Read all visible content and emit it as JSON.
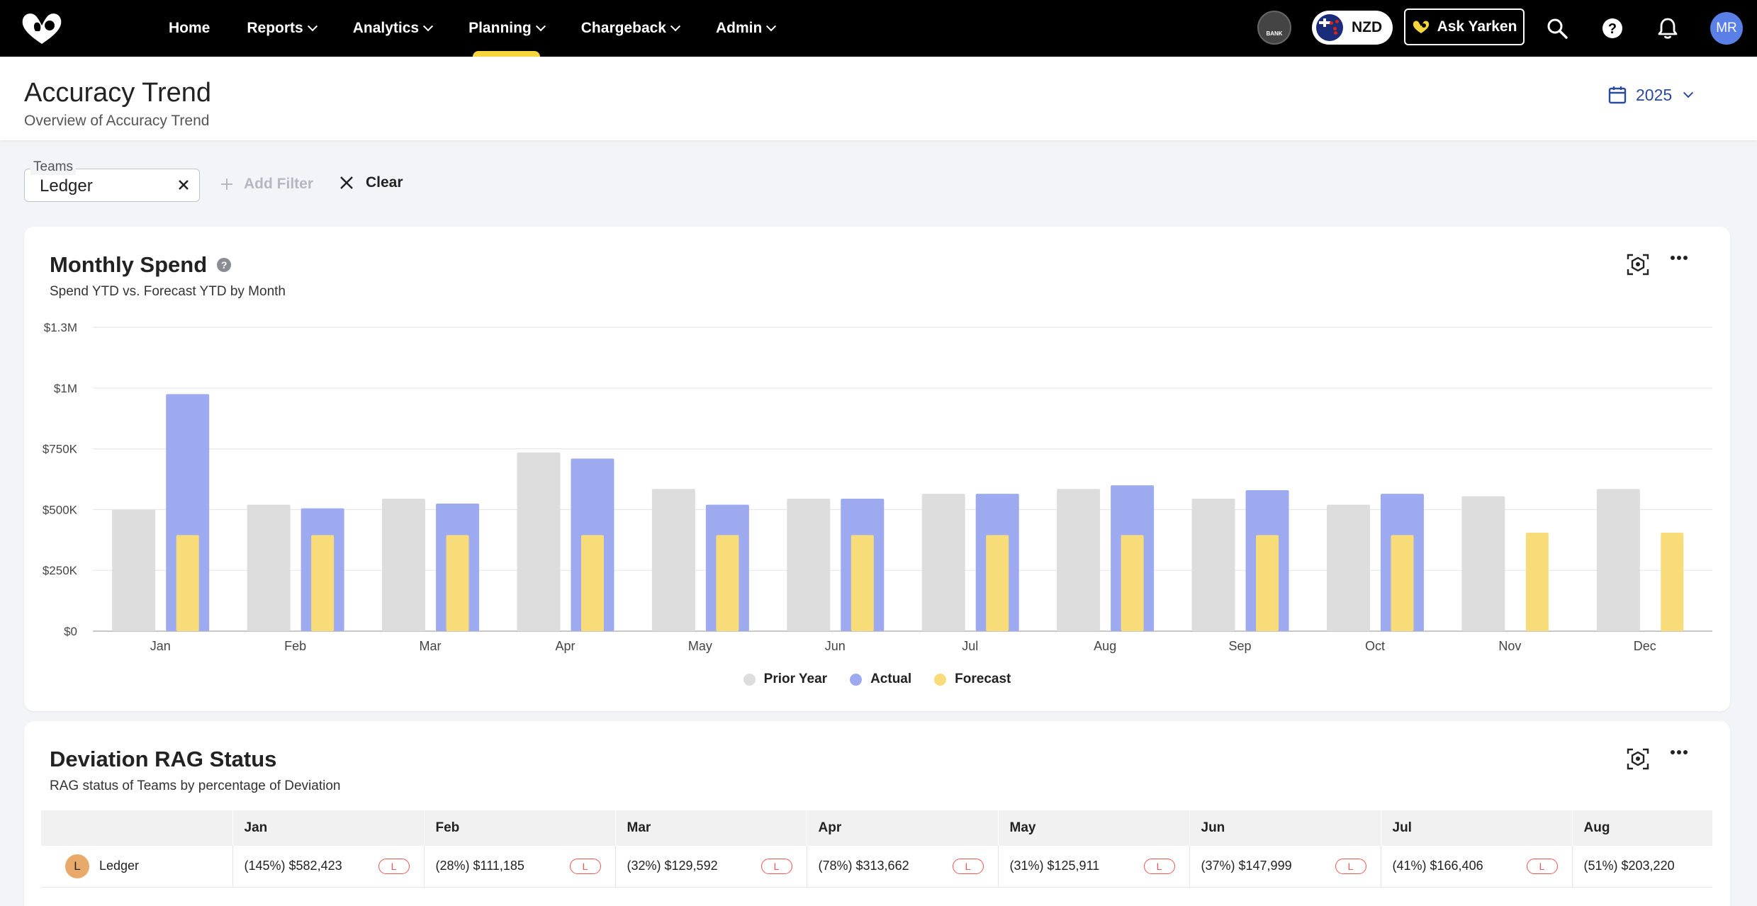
{
  "nav": {
    "items": [
      {
        "label": "Home",
        "dropdown": false,
        "active": false
      },
      {
        "label": "Reports",
        "dropdown": true,
        "active": false
      },
      {
        "label": "Analytics",
        "dropdown": true,
        "active": false
      },
      {
        "label": "Planning",
        "dropdown": true,
        "active": true
      },
      {
        "label": "Chargeback",
        "dropdown": true,
        "active": false
      },
      {
        "label": "Admin",
        "dropdown": true,
        "active": false
      }
    ],
    "bank_label": "BANK",
    "currency": "NZD",
    "ask_label": "Ask Yarken",
    "user_initials": "MR"
  },
  "header": {
    "title": "Accuracy Trend",
    "subtitle": "Overview of Accuracy Trend",
    "year": "2025"
  },
  "filters": {
    "teams_label": "Teams",
    "teams_value": "Ledger",
    "add_filter_label": "Add Filter",
    "clear_label": "Clear"
  },
  "monthly_spend": {
    "title": "Monthly Spend",
    "subtitle": "Spend YTD vs. Forecast YTD by Month"
  },
  "chart_data": {
    "type": "bar",
    "categories": [
      "Jan",
      "Feb",
      "Mar",
      "Apr",
      "May",
      "Jun",
      "Jul",
      "Aug",
      "Sep",
      "Oct",
      "Nov",
      "Dec"
    ],
    "series": [
      {
        "name": "Prior Year",
        "color": "#dddddd",
        "values": [
          500000,
          520000,
          545000,
          735000,
          585000,
          545000,
          565000,
          585000,
          545000,
          520000,
          555000,
          585000
        ]
      },
      {
        "name": "Actual",
        "color": "#9eaaf0",
        "values": [
          975000,
          505000,
          525000,
          710000,
          520000,
          545000,
          565000,
          600000,
          580000,
          565000,
          null,
          null
        ]
      },
      {
        "name": "Forecast",
        "color": "#f8dc7a",
        "values": [
          395000,
          395000,
          395000,
          395000,
          395000,
          395000,
          395000,
          395000,
          395000,
          395000,
          405000,
          405000
        ]
      }
    ],
    "y_ticks": [
      "$0",
      "$250K",
      "$500K",
      "$750K",
      "$1M",
      "$1.3M"
    ],
    "ylim": [
      0,
      1250000
    ],
    "grid": true,
    "legend": "bottom-center"
  },
  "rag": {
    "title": "Deviation RAG Status",
    "subtitle": "RAG status of Teams by percentage of Deviation",
    "columns": [
      "",
      "Jan",
      "Feb",
      "Mar",
      "Apr",
      "May",
      "Jun",
      "Jul",
      "Aug"
    ],
    "rows": [
      {
        "team": "Ledger",
        "initial": "L",
        "cells": [
          {
            "value": "(145%) $582,423",
            "badge": "L"
          },
          {
            "value": "(28%) $111,185",
            "badge": "L"
          },
          {
            "value": "(32%) $129,592",
            "badge": "L"
          },
          {
            "value": "(78%) $313,662",
            "badge": "L"
          },
          {
            "value": "(31%) $125,911",
            "badge": "L"
          },
          {
            "value": "(37%) $147,999",
            "badge": "L"
          },
          {
            "value": "(41%) $166,406",
            "badge": "L"
          },
          {
            "value": "(51%) $203,220",
            "badge": ""
          }
        ]
      }
    ]
  }
}
